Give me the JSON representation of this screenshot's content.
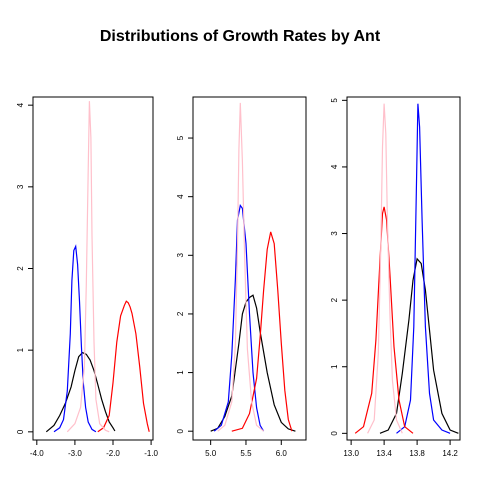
{
  "title": "Distributions of Growth Rates by Ant",
  "colors": {
    "black": "#000000",
    "blue": "#0000ff",
    "red": "#ff0000",
    "pink": "#ffc0cb"
  },
  "chart_data": [
    {
      "type": "line",
      "xlim": [
        -4.1,
        -0.95
      ],
      "ylim": [
        -0.1,
        4.1
      ],
      "xticks": [
        -4.0,
        -3.0,
        -2.0,
        -1.0
      ],
      "xtick_labels": [
        "-4.0",
        "-3.0",
        "-2.0",
        "-1.0"
      ],
      "yticks": [
        0,
        1,
        2,
        3,
        4
      ],
      "ytick_labels": [
        "0",
        "1",
        "2",
        "3",
        "4"
      ],
      "series": [
        {
          "color": "black",
          "x": [
            -3.75,
            -3.55,
            -3.4,
            -3.25,
            -3.1,
            -3.0,
            -2.9,
            -2.8,
            -2.7,
            -2.6,
            -2.5,
            -2.4,
            -2.3,
            -2.2,
            -2.1,
            -2.0,
            -1.95
          ],
          "y": [
            0.0,
            0.08,
            0.2,
            0.35,
            0.55,
            0.75,
            0.92,
            0.97,
            0.95,
            0.88,
            0.75,
            0.58,
            0.4,
            0.25,
            0.12,
            0.05,
            0.01
          ]
        },
        {
          "color": "blue",
          "x": [
            -3.55,
            -3.4,
            -3.3,
            -3.2,
            -3.12,
            -3.08,
            -3.03,
            -2.98,
            -2.93,
            -2.88,
            -2.83,
            -2.78,
            -2.72,
            -2.65,
            -2.55,
            -2.45
          ],
          "y": [
            0.0,
            0.05,
            0.15,
            0.5,
            1.2,
            1.85,
            2.22,
            2.27,
            2.05,
            1.6,
            1.05,
            0.6,
            0.3,
            0.12,
            0.03,
            0.0
          ]
        },
        {
          "color": "red",
          "x": [
            -2.4,
            -2.25,
            -2.1,
            -2.0,
            -1.9,
            -1.8,
            -1.7,
            -1.65,
            -1.6,
            -1.55,
            -1.5,
            -1.4,
            -1.3,
            -1.2,
            -1.1,
            -1.05
          ],
          "y": [
            0.0,
            0.05,
            0.2,
            0.6,
            1.1,
            1.42,
            1.55,
            1.6,
            1.58,
            1.53,
            1.45,
            1.2,
            0.8,
            0.35,
            0.1,
            0.0
          ]
        },
        {
          "color": "pink",
          "x": [
            -3.2,
            -3.0,
            -2.85,
            -2.75,
            -2.7,
            -2.65,
            -2.62,
            -2.58,
            -2.55,
            -2.5,
            -2.45,
            -2.35,
            -2.2,
            -2.1
          ],
          "y": [
            0.0,
            0.1,
            0.3,
            0.8,
            1.8,
            3.2,
            4.05,
            3.6,
            2.4,
            1.1,
            0.4,
            0.1,
            0.02,
            0.0
          ]
        }
      ]
    },
    {
      "type": "line",
      "xlim": [
        4.75,
        6.35
      ],
      "ylim": [
        -0.15,
        5.7
      ],
      "xticks": [
        5.0,
        5.5,
        6.0
      ],
      "xtick_labels": [
        "5.0",
        "5.5",
        "6.0"
      ],
      "yticks": [
        0,
        1,
        2,
        3,
        4,
        5
      ],
      "ytick_labels": [
        "0",
        "1",
        "2",
        "3",
        "4",
        "5"
      ],
      "series": [
        {
          "color": "black",
          "x": [
            5.0,
            5.1,
            5.2,
            5.3,
            5.4,
            5.45,
            5.5,
            5.55,
            5.6,
            5.65,
            5.7,
            5.8,
            5.9,
            6.0,
            6.1,
            6.2
          ],
          "y": [
            0.0,
            0.05,
            0.25,
            0.6,
            1.5,
            2.0,
            2.2,
            2.28,
            2.32,
            2.1,
            1.7,
            1.0,
            0.45,
            0.15,
            0.04,
            0.0
          ]
        },
        {
          "color": "blue",
          "x": [
            5.05,
            5.15,
            5.25,
            5.3,
            5.35,
            5.38,
            5.42,
            5.45,
            5.5,
            5.55,
            5.6,
            5.65,
            5.7,
            5.75
          ],
          "y": [
            0.0,
            0.1,
            0.5,
            1.3,
            2.6,
            3.6,
            3.85,
            3.8,
            3.2,
            2.0,
            1.0,
            0.4,
            0.1,
            0.0
          ]
        },
        {
          "color": "red",
          "x": [
            5.3,
            5.45,
            5.55,
            5.65,
            5.7,
            5.75,
            5.8,
            5.85,
            5.9,
            5.95,
            6.0,
            6.05,
            6.1,
            6.15
          ],
          "y": [
            0.0,
            0.05,
            0.3,
            0.9,
            1.6,
            2.4,
            3.1,
            3.4,
            3.2,
            2.4,
            1.5,
            0.7,
            0.2,
            0.0
          ]
        },
        {
          "color": "pink",
          "x": [
            5.1,
            5.2,
            5.3,
            5.35,
            5.38,
            5.4,
            5.42,
            5.45,
            5.48,
            5.52,
            5.58,
            5.65,
            5.75
          ],
          "y": [
            0.0,
            0.1,
            0.5,
            1.5,
            3.2,
            4.8,
            5.6,
            4.6,
            3.0,
            1.4,
            0.5,
            0.1,
            0.0
          ]
        }
      ]
    },
    {
      "type": "line",
      "xlim": [
        12.95,
        14.32
      ],
      "ylim": [
        -0.1,
        5.05
      ],
      "xticks": [
        13.0,
        13.4,
        13.8,
        14.2
      ],
      "xtick_labels": [
        "13.0",
        "13.4",
        "13.8",
        "14.2"
      ],
      "yticks": [
        0,
        1,
        2,
        3,
        4,
        5
      ],
      "ytick_labels": [
        "0",
        "1",
        "2",
        "3",
        "4",
        "5"
      ],
      "series": [
        {
          "color": "black",
          "x": [
            13.35,
            13.45,
            13.55,
            13.62,
            13.7,
            13.75,
            13.8,
            13.85,
            13.9,
            13.95,
            14.0,
            14.1,
            14.2,
            14.3
          ],
          "y": [
            0.0,
            0.05,
            0.3,
            0.9,
            1.7,
            2.3,
            2.62,
            2.55,
            2.15,
            1.55,
            0.95,
            0.3,
            0.05,
            0.0
          ]
        },
        {
          "color": "blue",
          "x": [
            13.55,
            13.65,
            13.72,
            13.76,
            13.79,
            13.81,
            13.83,
            13.86,
            13.9,
            13.95,
            14.0,
            14.1,
            14.2
          ],
          "y": [
            0.0,
            0.1,
            0.5,
            1.6,
            3.6,
            4.95,
            4.6,
            3.2,
            1.6,
            0.6,
            0.2,
            0.05,
            0.0
          ]
        },
        {
          "color": "red",
          "x": [
            13.05,
            13.15,
            13.25,
            13.3,
            13.35,
            13.38,
            13.4,
            13.43,
            13.47,
            13.52,
            13.58,
            13.65,
            13.75
          ],
          "y": [
            0.0,
            0.1,
            0.6,
            1.4,
            2.6,
            3.3,
            3.4,
            3.2,
            2.4,
            1.3,
            0.5,
            0.1,
            0.0
          ]
        },
        {
          "color": "pink",
          "x": [
            13.2,
            13.28,
            13.33,
            13.36,
            13.38,
            13.4,
            13.42,
            13.44,
            13.47,
            13.5,
            13.55,
            13.62
          ],
          "y": [
            0.0,
            0.2,
            1.2,
            2.8,
            4.3,
            4.95,
            4.5,
            3.2,
            1.8,
            0.8,
            0.2,
            0.0
          ]
        }
      ]
    }
  ]
}
